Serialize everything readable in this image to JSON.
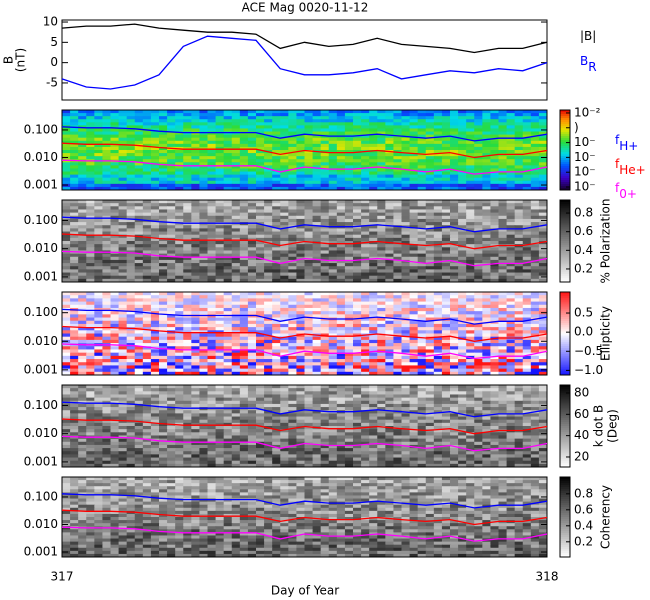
{
  "chart_data": [
    {
      "type": "line",
      "title": "ACE Mag 0020-11-12",
      "ylabel": [
        "B",
        "(nT)"
      ],
      "x": [
        317,
        317.05,
        317.1,
        317.15,
        317.2,
        317.25,
        317.3,
        317.35,
        317.4,
        317.45,
        317.5,
        317.55,
        317.6,
        317.65,
        317.7,
        317.75,
        317.8,
        317.85,
        317.9,
        317.95,
        318
      ],
      "xlim": [
        317,
        318
      ],
      "ylim": [
        -9.2,
        10.5
      ],
      "yticks": [
        -5,
        0,
        5,
        10
      ],
      "legend": "right-outside",
      "series": [
        {
          "name": "|B|",
          "color": "#000000",
          "values": [
            8.5,
            9.0,
            9.0,
            9.5,
            8.5,
            8.0,
            7.5,
            7.5,
            7.0,
            3.5,
            5.0,
            4.0,
            4.5,
            6.0,
            4.5,
            4.0,
            3.5,
            2.5,
            3.5,
            3.5,
            5.0
          ]
        },
        {
          "name": "B",
          "subscript": "R",
          "color": "#0000ff",
          "values": [
            -4,
            -6,
            -6.5,
            -5.5,
            -3,
            4,
            6.5,
            6,
            5.5,
            -1.5,
            -3,
            -3,
            -2.5,
            -1.5,
            -4,
            -3,
            -2,
            -2.5,
            -1.5,
            -2,
            0
          ]
        }
      ]
    },
    {
      "type": "spectrogram",
      "colormap": "rainbow",
      "log_y": true,
      "log_z": true,
      "legend": "right-outside",
      "x": [
        317,
        317.05,
        317.1,
        317.15,
        317.2,
        317.25,
        317.3,
        317.35,
        317.4,
        317.45,
        317.5,
        317.55,
        317.6,
        317.65,
        317.7,
        317.75,
        317.8,
        317.85,
        317.9,
        317.95,
        318
      ],
      "xlim": [
        317,
        318
      ],
      "ylim": [
        0.00066,
        0.53
      ],
      "yticks": [
        0.001,
        {
          "value": 0.01,
          "label": "0.010"
        },
        {
          "value": 0.1,
          "label": "0.100"
        }
      ],
      "zlim": [
        6.3e-08,
        0.0158
      ],
      "zticks": [
        {
          "value": 0.01,
          "label": "10⁻²"
        },
        {
          "value": 0.001,
          "label": ")"
        },
        {
          "value": 0.0001,
          "label": "10⁻"
        },
        {
          "value": 1e-05,
          "label": "10⁻"
        },
        {
          "value": 1e-06,
          "label": "10⁻"
        },
        {
          "value": 1e-07,
          "label": "10⁻"
        }
      ],
      "series": [
        {
          "name": "f",
          "subscript": "H+",
          "color": "#0000ff",
          "values": [
            0.13,
            0.12,
            0.12,
            0.11,
            0.09,
            0.08,
            0.08,
            0.08,
            0.08,
            0.05,
            0.07,
            0.06,
            0.06,
            0.07,
            0.06,
            0.05,
            0.06,
            0.04,
            0.05,
            0.05,
            0.07
          ]
        },
        {
          "name": "f",
          "subscript": "He+",
          "color": "#ff0000",
          "values": [
            0.033,
            0.03,
            0.03,
            0.028,
            0.023,
            0.02,
            0.02,
            0.02,
            0.02,
            0.013,
            0.018,
            0.015,
            0.015,
            0.018,
            0.015,
            0.013,
            0.015,
            0.01,
            0.013,
            0.013,
            0.018
          ]
        },
        {
          "name": "f",
          "subscript": "0+",
          "color": "#ff00ff",
          "values": [
            0.008,
            0.0075,
            0.0075,
            0.007,
            0.0056,
            0.005,
            0.005,
            0.005,
            0.005,
            0.003,
            0.0045,
            0.0038,
            0.0038,
            0.0045,
            0.0038,
            0.003,
            0.0038,
            0.0025,
            0.003,
            0.003,
            0.0045
          ]
        }
      ]
    },
    {
      "type": "spectrogram",
      "colormap": "gray",
      "colorbar_label": [
        "% Polarization"
      ],
      "log_y": true,
      "x": [
        317,
        317.05,
        317.1,
        317.15,
        317.2,
        317.25,
        317.3,
        317.35,
        317.4,
        317.45,
        317.5,
        317.55,
        317.6,
        317.65,
        317.7,
        317.75,
        317.8,
        317.85,
        317.9,
        317.95,
        318
      ],
      "xlim": [
        317,
        318
      ],
      "ylim": [
        0.00066,
        0.53
      ],
      "yticks": [
        0.001,
        {
          "value": 0.01,
          "label": "0.010"
        },
        {
          "value": 0.1,
          "label": "0.100"
        }
      ],
      "zlim": [
        0.06,
        0.94
      ],
      "zticks": [
        0.2,
        0.4,
        0.6,
        0.8
      ],
      "series": [
        {
          "name": "f",
          "subscript": "H+",
          "color": "#0000ff",
          "values": [
            0.13,
            0.12,
            0.12,
            0.11,
            0.09,
            0.08,
            0.08,
            0.08,
            0.08,
            0.05,
            0.07,
            0.06,
            0.06,
            0.07,
            0.06,
            0.05,
            0.06,
            0.04,
            0.05,
            0.05,
            0.07
          ]
        },
        {
          "name": "f",
          "subscript": "He+",
          "color": "#ff0000",
          "values": [
            0.033,
            0.03,
            0.03,
            0.028,
            0.023,
            0.02,
            0.02,
            0.02,
            0.02,
            0.013,
            0.018,
            0.015,
            0.015,
            0.018,
            0.015,
            0.013,
            0.015,
            0.01,
            0.013,
            0.013,
            0.018
          ]
        },
        {
          "name": "f",
          "subscript": "0+",
          "color": "#ff00ff",
          "values": [
            0.008,
            0.0075,
            0.0075,
            0.007,
            0.0056,
            0.005,
            0.005,
            0.005,
            0.005,
            0.003,
            0.0045,
            0.0038,
            0.0038,
            0.0045,
            0.0038,
            0.003,
            0.0038,
            0.0025,
            0.003,
            0.003,
            0.0045
          ]
        }
      ]
    },
    {
      "type": "spectrogram",
      "colormap": "red-blue",
      "colorbar_label": [
        "Ellipticity"
      ],
      "log_y": true,
      "x": [
        317,
        317.05,
        317.1,
        317.15,
        317.2,
        317.25,
        317.3,
        317.35,
        317.4,
        317.45,
        317.5,
        317.55,
        317.6,
        317.65,
        317.7,
        317.75,
        317.8,
        317.85,
        317.9,
        317.95,
        318
      ],
      "xlim": [
        317,
        318
      ],
      "ylim": [
        0.00066,
        0.53
      ],
      "yticks": [
        0.001,
        {
          "value": 0.01,
          "label": "0.010"
        },
        {
          "value": 0.1,
          "label": "0.100"
        }
      ],
      "zlim": [
        -1.12,
        1.05
      ],
      "zticks": [
        {
          "value": -1,
          "label": "−1.0"
        },
        {
          "value": -0.5,
          "label": "−0.5"
        },
        {
          "value": 0,
          "label": "0.0"
        },
        0.5
      ],
      "series": [
        {
          "name": "f",
          "subscript": "H+",
          "color": "#0000ff",
          "values": [
            0.13,
            0.12,
            0.12,
            0.11,
            0.09,
            0.08,
            0.08,
            0.08,
            0.08,
            0.05,
            0.07,
            0.06,
            0.06,
            0.07,
            0.06,
            0.05,
            0.06,
            0.04,
            0.05,
            0.05,
            0.07
          ]
        },
        {
          "name": "f",
          "subscript": "He+",
          "color": "#ff0000",
          "values": [
            0.033,
            0.03,
            0.03,
            0.028,
            0.023,
            0.02,
            0.02,
            0.02,
            0.02,
            0.013,
            0.018,
            0.015,
            0.015,
            0.018,
            0.015,
            0.013,
            0.015,
            0.01,
            0.013,
            0.013,
            0.018
          ]
        },
        {
          "name": "f",
          "subscript": "0+",
          "color": "#ff00ff",
          "values": [
            0.008,
            0.0075,
            0.0075,
            0.007,
            0.0056,
            0.005,
            0.005,
            0.005,
            0.005,
            0.003,
            0.0045,
            0.0038,
            0.0038,
            0.0045,
            0.0038,
            0.003,
            0.0038,
            0.0025,
            0.003,
            0.003,
            0.0045
          ]
        }
      ]
    },
    {
      "type": "spectrogram",
      "colormap": "gray",
      "colorbar_label": [
        "k dot B",
        "(Deg)"
      ],
      "log_y": true,
      "x": [
        317,
        317.05,
        317.1,
        317.15,
        317.2,
        317.25,
        317.3,
        317.35,
        317.4,
        317.45,
        317.5,
        317.55,
        317.6,
        317.65,
        317.7,
        317.75,
        317.8,
        317.85,
        317.9,
        317.95,
        318
      ],
      "xlim": [
        317,
        318
      ],
      "ylim": [
        0.00066,
        0.53
      ],
      "yticks": [
        0.001,
        {
          "value": 0.01,
          "label": "0.010"
        },
        {
          "value": 0.1,
          "label": "0.100"
        }
      ],
      "zlim": [
        10.6,
        87.5
      ],
      "zticks": [
        20,
        40,
        60,
        80
      ],
      "series": [
        {
          "name": "f",
          "subscript": "H+",
          "color": "#0000ff",
          "values": [
            0.13,
            0.12,
            0.12,
            0.11,
            0.09,
            0.08,
            0.08,
            0.08,
            0.08,
            0.05,
            0.07,
            0.06,
            0.06,
            0.07,
            0.06,
            0.05,
            0.06,
            0.04,
            0.05,
            0.05,
            0.07
          ]
        },
        {
          "name": "f",
          "subscript": "He+",
          "color": "#ff0000",
          "values": [
            0.033,
            0.03,
            0.03,
            0.028,
            0.023,
            0.02,
            0.02,
            0.02,
            0.02,
            0.013,
            0.018,
            0.015,
            0.015,
            0.018,
            0.015,
            0.013,
            0.015,
            0.01,
            0.013,
            0.013,
            0.018
          ]
        },
        {
          "name": "f",
          "subscript": "0+",
          "color": "#ff00ff",
          "values": [
            0.008,
            0.0075,
            0.0075,
            0.007,
            0.0056,
            0.005,
            0.005,
            0.005,
            0.005,
            0.003,
            0.0045,
            0.0038,
            0.0038,
            0.0045,
            0.0038,
            0.003,
            0.0038,
            0.0025,
            0.003,
            0.003,
            0.0045
          ]
        }
      ]
    },
    {
      "type": "spectrogram",
      "colormap": "gray",
      "colorbar_label": [
        "Coherency"
      ],
      "log_y": true,
      "x": [
        317,
        317.05,
        317.1,
        317.15,
        317.2,
        317.25,
        317.3,
        317.35,
        317.4,
        317.45,
        317.5,
        317.55,
        317.6,
        317.65,
        317.7,
        317.75,
        317.8,
        317.85,
        317.9,
        317.95,
        318
      ],
      "xlim": [
        317,
        318
      ],
      "ylim": [
        0.00066,
        0.53
      ],
      "xticks": [
        317,
        318
      ],
      "xlabel": "Day of Year",
      "yticks": [
        0.001,
        {
          "value": 0.01,
          "label": "0.010"
        },
        {
          "value": 0.1,
          "label": "0.100"
        }
      ],
      "zlim": [
        0.01,
        1.01
      ],
      "zticks": [
        0.2,
        0.4,
        0.6,
        0.8
      ],
      "series": [
        {
          "name": "f",
          "subscript": "H+",
          "color": "#0000ff",
          "values": [
            0.13,
            0.12,
            0.12,
            0.11,
            0.09,
            0.08,
            0.08,
            0.08,
            0.08,
            0.05,
            0.07,
            0.06,
            0.06,
            0.07,
            0.06,
            0.05,
            0.06,
            0.04,
            0.05,
            0.05,
            0.07
          ]
        },
        {
          "name": "f",
          "subscript": "He+",
          "color": "#ff0000",
          "values": [
            0.033,
            0.03,
            0.03,
            0.028,
            0.023,
            0.02,
            0.02,
            0.02,
            0.02,
            0.013,
            0.018,
            0.015,
            0.015,
            0.018,
            0.015,
            0.013,
            0.015,
            0.01,
            0.013,
            0.013,
            0.018
          ]
        },
        {
          "name": "f",
          "subscript": "0+",
          "color": "#ff00ff",
          "values": [
            0.008,
            0.0075,
            0.0075,
            0.007,
            0.0056,
            0.005,
            0.005,
            0.005,
            0.005,
            0.003,
            0.0045,
            0.0038,
            0.0038,
            0.0045,
            0.0038,
            0.003,
            0.0038,
            0.0025,
            0.003,
            0.003,
            0.0045
          ]
        }
      ]
    }
  ]
}
